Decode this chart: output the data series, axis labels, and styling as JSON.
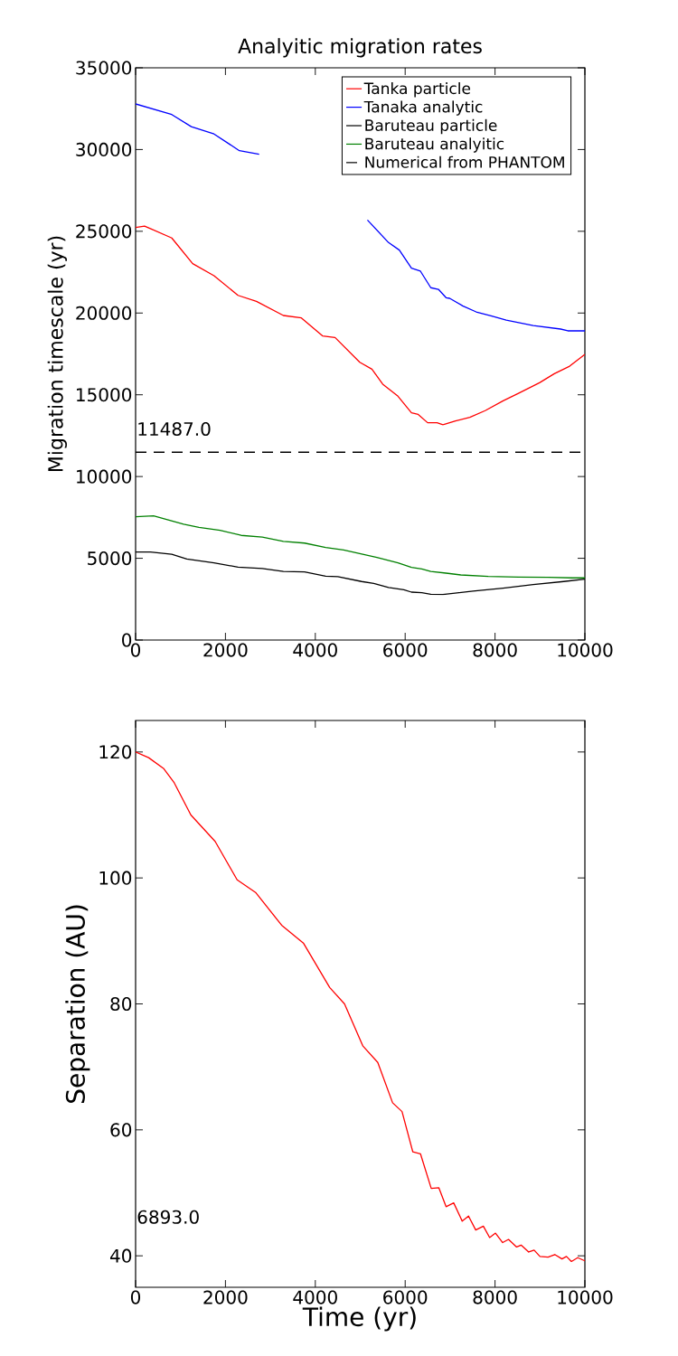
{
  "chart_data": [
    {
      "type": "line",
      "title": "Analyitic migration rates",
      "ylabel": "Migration timescale (yr)",
      "xlim": [
        0,
        10000
      ],
      "ylim": [
        0,
        35000
      ],
      "xticks": [
        0,
        2000,
        4000,
        6000,
        8000,
        10000
      ],
      "yticks": [
        0,
        5000,
        10000,
        15000,
        20000,
        25000,
        30000,
        35000
      ],
      "legend": "top right",
      "annotations": [
        "11487.0"
      ],
      "series": [
        {
          "name": "Tanka particle",
          "color": "#ff0000",
          "x": [
            0,
            200,
            805,
            1270,
            1745,
            2280,
            2690,
            3290,
            3690,
            4160,
            4440,
            4990,
            5260,
            5500,
            5840,
            6140,
            6290,
            6500,
            6710,
            6840,
            7120,
            7440,
            7780,
            8180,
            8520,
            8990,
            9320,
            9660,
            10000
          ],
          "values": [
            25230,
            25320,
            24590,
            23020,
            22280,
            21080,
            20710,
            19850,
            19700,
            18600,
            18500,
            16990,
            16570,
            15650,
            14910,
            13900,
            13800,
            13290,
            13290,
            13160,
            13400,
            13620,
            14030,
            14630,
            15090,
            15740,
            16290,
            16750,
            17470
          ]
        },
        {
          "name": "Tanaka analytic",
          "color": "#0000ff",
          "x": [
            0,
            805,
            1240,
            1745,
            2310,
            2750,
            4000,
            5160,
            5630,
            5870,
            6140,
            6340,
            6570,
            6740,
            6910,
            6990,
            7280,
            7580,
            7910,
            8250,
            8850,
            9460,
            9620,
            10000
          ],
          "values": [
            32790,
            32140,
            31400,
            30950,
            29930,
            29710,
            null,
            25690,
            24310,
            23850,
            22740,
            22560,
            21550,
            21450,
            20940,
            20900,
            20440,
            20070,
            19830,
            19560,
            19240,
            19020,
            18910,
            18910
          ]
        },
        {
          "name": "Baruteau particle",
          "color": "#000000",
          "x": [
            0,
            330,
            805,
            1140,
            1745,
            2280,
            2820,
            3290,
            3760,
            4230,
            4500,
            5030,
            5300,
            5630,
            5970,
            6140,
            6370,
            6570,
            6840,
            7510,
            8180,
            8850,
            9530,
            10000
          ],
          "values": [
            5380,
            5380,
            5240,
            4960,
            4720,
            4460,
            4370,
            4190,
            4170,
            3910,
            3880,
            3580,
            3460,
            3210,
            3080,
            2930,
            2900,
            2800,
            2780,
            2990,
            3170,
            3390,
            3580,
            3720
          ]
        },
        {
          "name": "Baruteau analyitic",
          "color": "#008000",
          "x": [
            0,
            400,
            1070,
            1410,
            1880,
            2350,
            2820,
            3290,
            3760,
            4230,
            4630,
            5370,
            5840,
            6140,
            6370,
            6570,
            6910,
            7240,
            7850,
            8520,
            9190,
            9730,
            10000
          ],
          "values": [
            7540,
            7590,
            7080,
            6890,
            6710,
            6400,
            6300,
            6030,
            5930,
            5660,
            5510,
            5050,
            4720,
            4440,
            4350,
            4190,
            4090,
            3980,
            3890,
            3850,
            3830,
            3800,
            3800
          ]
        },
        {
          "name": "Numerical from PHANTOM",
          "color": "#000000",
          "line_style": "dashed",
          "x": [
            0,
            10000
          ],
          "values": [
            11487,
            11487
          ]
        }
      ]
    },
    {
      "type": "line",
      "xlabel": "Time (yr)",
      "ylabel": "Separation (AU)",
      "xlim": [
        0,
        10000
      ],
      "ylim": [
        35,
        125
      ],
      "xticks": [
        0,
        2000,
        4000,
        6000,
        8000,
        10000
      ],
      "yticks": [
        40,
        60,
        80,
        100,
        120
      ],
      "annotations": [
        "6893.0"
      ],
      "series": [
        {
          "color": "#ff0000",
          "x": [
            0,
            290,
            620,
            860,
            1230,
            1770,
            2260,
            2670,
            3250,
            3740,
            4320,
            4650,
            5060,
            5390,
            5720,
            5930,
            6170,
            6340,
            6580,
            6750,
            6910,
            7080,
            7270,
            7410,
            7570,
            7740,
            7880,
            8010,
            8170,
            8300,
            8480,
            8580,
            8750,
            8870,
            9000,
            9180,
            9330,
            9490,
            9590,
            9700,
            9840,
            10000
          ],
          "values": [
            120.0,
            119.1,
            117.4,
            115.1,
            110.0,
            105.8,
            99.7,
            97.7,
            92.5,
            89.6,
            82.6,
            80.0,
            73.3,
            70.7,
            64.3,
            62.9,
            56.5,
            56.2,
            50.7,
            50.8,
            47.8,
            48.4,
            45.5,
            46.3,
            44.1,
            44.7,
            42.9,
            43.6,
            42.1,
            42.6,
            41.4,
            41.7,
            40.6,
            40.9,
            39.9,
            39.8,
            40.2,
            39.5,
            39.9,
            39.1,
            39.7,
            39.2
          ]
        }
      ]
    }
  ]
}
